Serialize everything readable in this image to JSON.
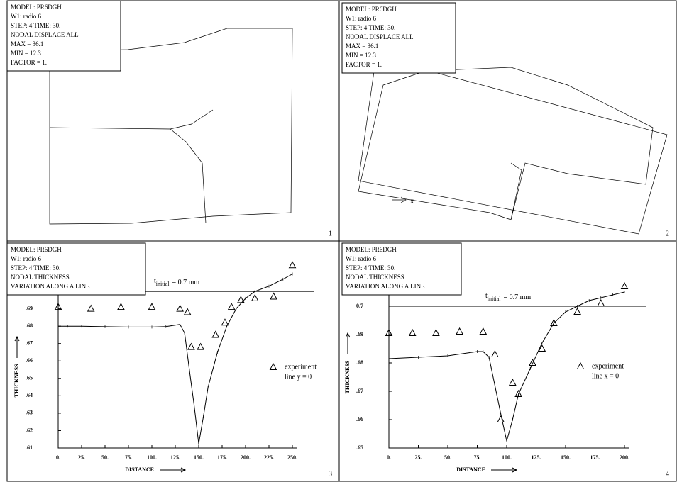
{
  "mesh_panels": [
    {
      "info": [
        "MODEL: PR6DGH",
        "W1: radio 6",
        "STEP: 4  TIME: 30.",
        "NODAL DISPLACE ALL",
        "MAX = 36.1",
        "MIN = 12.3",
        "FACTOR =  1."
      ],
      "panel": "1"
    },
    {
      "info": [
        "MODEL: PR6DGH",
        "W1: radio 6",
        "STEP: 4  TIME: 30.",
        "NODAL DISPLACE ALL",
        "MAX = 36.1",
        "MIN = 12.3",
        "FACTOR =  1."
      ],
      "axis_label": "x",
      "panel": "2"
    }
  ],
  "chart_data": [
    {
      "type": "line",
      "info": [
        "MODEL: PR6DGH",
        "W1: radio 6",
        "STEP: 4  TIME: 30.",
        "NODAL   THICKNESS",
        "VARIATION ALONG A LINE"
      ],
      "xlabel": "DISTANCE",
      "ylabel": "THICKNESS",
      "panel": "3",
      "reference": {
        "value": 0.7,
        "symbol": "t",
        "subscript": "initial",
        "text": "= 0.7 mm"
      },
      "xlim": [
        0,
        250
      ],
      "ylim": [
        0.61,
        0.72
      ],
      "xticks": [
        {
          "value": 0,
          "label": "0."
        },
        {
          "value": 25,
          "label": "25."
        },
        {
          "value": 50,
          "label": "50."
        },
        {
          "value": 75,
          "label": "75."
        },
        {
          "value": 100,
          "label": "100."
        },
        {
          "value": 125,
          "label": "125."
        },
        {
          "value": 150,
          "label": "150."
        },
        {
          "value": 175,
          "label": "175."
        },
        {
          "value": 200,
          "label": "200."
        },
        {
          "value": 225,
          "label": "225."
        },
        {
          "value": 250,
          "label": "250."
        }
      ],
      "yticks": [
        {
          "value": 0.61,
          "label": ".61"
        },
        {
          "value": 0.62,
          "label": ".62"
        },
        {
          "value": 0.63,
          "label": ".63"
        },
        {
          "value": 0.64,
          "label": ".64"
        },
        {
          "value": 0.65,
          "label": ".65"
        },
        {
          "value": 0.66,
          "label": ".66"
        },
        {
          "value": 0.67,
          "label": ".67"
        },
        {
          "value": 0.68,
          "label": ".68"
        },
        {
          "value": 0.69,
          "label": ".69"
        }
      ],
      "series": [
        {
          "marker": "line",
          "color": "#000000",
          "x": [
            0,
            10,
            25,
            50,
            75,
            100,
            115,
            130,
            135,
            140,
            145,
            150,
            155,
            160,
            170,
            180,
            190,
            200,
            210,
            225,
            240,
            250
          ],
          "values": [
            0.68,
            0.68,
            0.68,
            0.6797,
            0.6795,
            0.6795,
            0.6798,
            0.681,
            0.676,
            0.655,
            0.635,
            0.6125,
            0.628,
            0.645,
            0.665,
            0.68,
            0.69,
            0.696,
            0.7,
            0.703,
            0.707,
            0.71
          ]
        },
        {
          "name": "experiment",
          "note": "line  y = 0",
          "marker": "triangle",
          "color": "#000000",
          "x": [
            0,
            35,
            67,
            100,
            130,
            138,
            142,
            152,
            168,
            178,
            185,
            195,
            210,
            230,
            250
          ],
          "values": [
            0.691,
            0.69,
            0.691,
            0.691,
            0.69,
            0.688,
            0.668,
            0.668,
            0.675,
            0.682,
            0.691,
            0.695,
            0.696,
            0.697,
            0.715
          ]
        }
      ]
    },
    {
      "type": "line",
      "info": [
        "MODEL: PR6DGH",
        "W1: radio 6",
        "STEP: 4  TIME: 30.",
        "NODAL   THICKNESS",
        "VARIATION ALONG A LINE"
      ],
      "xlabel": "DISTANCE",
      "ylabel": "THICKNESS",
      "panel": "4",
      "reference": {
        "value": 0.7,
        "symbol": "t",
        "subscript": "initial",
        "text": "= 0.7 mm"
      },
      "xlim": [
        0,
        200
      ],
      "ylim": [
        0.65,
        0.72
      ],
      "xticks": [
        {
          "value": 0,
          "label": "0."
        },
        {
          "value": 25,
          "label": "25."
        },
        {
          "value": 50,
          "label": "50."
        },
        {
          "value": 75,
          "label": "75."
        },
        {
          "value": 100,
          "label": "100."
        },
        {
          "value": 125,
          "label": "125."
        },
        {
          "value": 150,
          "label": "150."
        },
        {
          "value": 175,
          "label": "175."
        },
        {
          "value": 200,
          "label": "200."
        }
      ],
      "yticks": [
        {
          "value": 0.65,
          "label": ".65"
        },
        {
          "value": 0.66,
          "label": ".66"
        },
        {
          "value": 0.67,
          "label": ".67"
        },
        {
          "value": 0.68,
          "label": ".68"
        },
        {
          "value": 0.69,
          "label": ".69"
        },
        0.7
      ],
      "series": [
        {
          "marker": "line",
          "color": "#000000",
          "x": [
            0,
            25,
            50,
            75,
            80,
            85,
            90,
            95,
            100,
            105,
            110,
            120,
            130,
            140,
            150,
            160,
            170,
            180,
            190,
            200
          ],
          "values": [
            0.6815,
            0.682,
            0.6825,
            0.684,
            0.684,
            0.682,
            0.672,
            0.662,
            0.6525,
            0.66,
            0.669,
            0.678,
            0.687,
            0.694,
            0.698,
            0.7,
            0.702,
            0.703,
            0.704,
            0.705
          ]
        },
        {
          "name": "experiment",
          "note": "line  x = 0",
          "marker": "triangle",
          "color": "#000000",
          "x": [
            0,
            20,
            40,
            60,
            80,
            90,
            95,
            105,
            110,
            122,
            130,
            140,
            160,
            180,
            200
          ],
          "values": [
            0.6905,
            0.6905,
            0.6905,
            0.691,
            0.691,
            0.683,
            0.66,
            0.673,
            0.669,
            0.68,
            0.685,
            0.694,
            0.698,
            0.701,
            0.707
          ]
        }
      ]
    }
  ]
}
